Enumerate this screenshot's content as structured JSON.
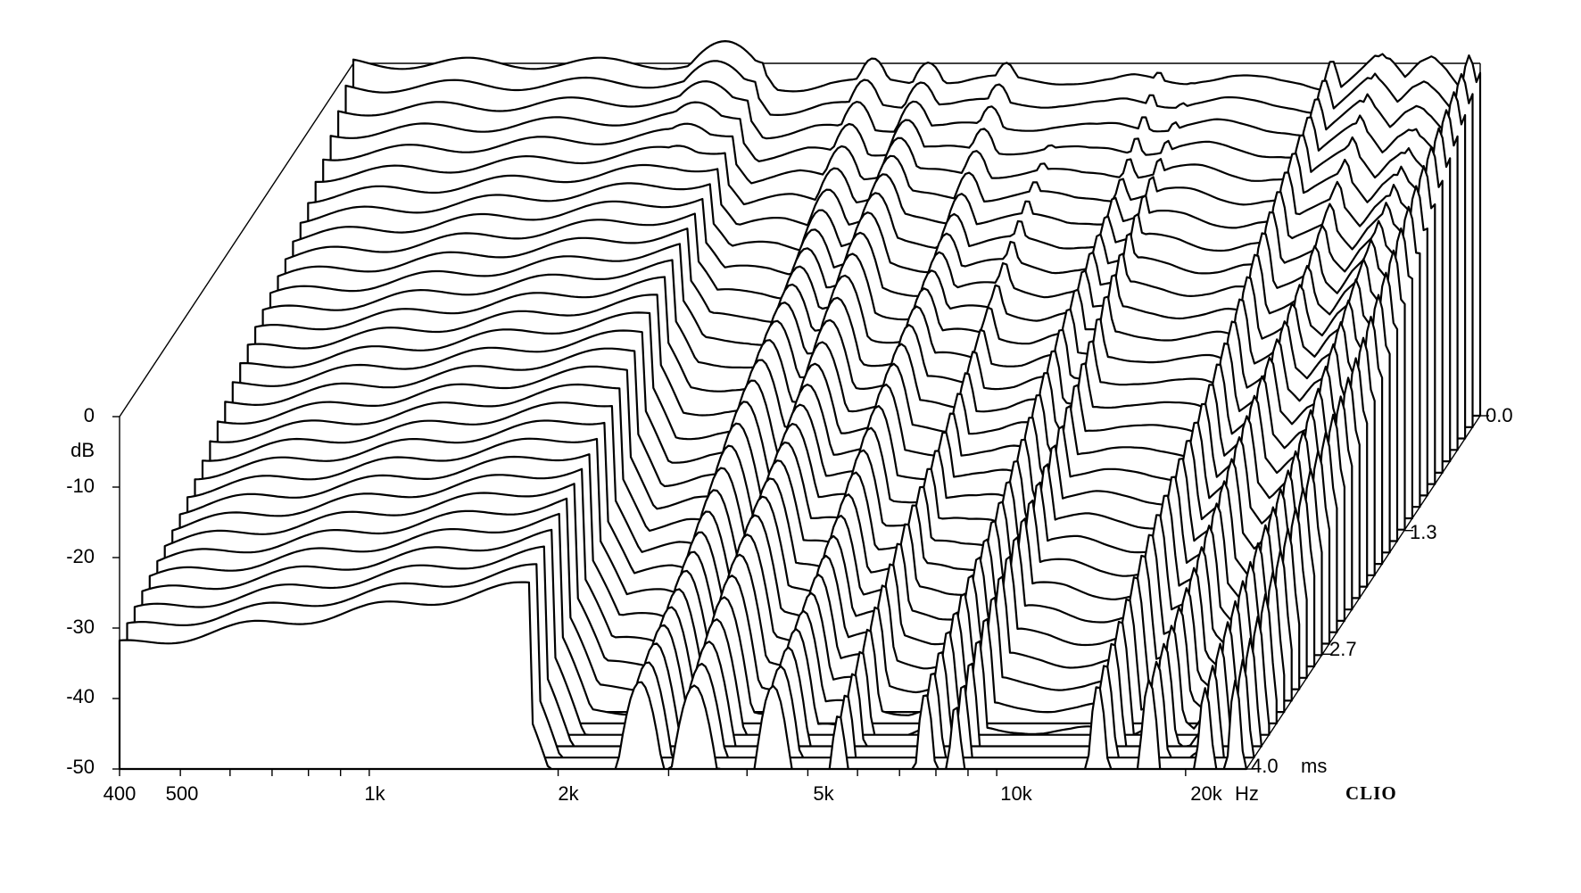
{
  "chart_data": {
    "type": "waterfall",
    "title": "",
    "x_axis": {
      "unit": "Hz",
      "scale": "log",
      "range": [
        400,
        25000
      ],
      "tick_labels": [
        {
          "value": 400,
          "label": "400"
        },
        {
          "value": 500,
          "label": "500"
        },
        {
          "value": 1000,
          "label": "1k"
        },
        {
          "value": 2000,
          "label": "2k"
        },
        {
          "value": 5000,
          "label": "5k"
        },
        {
          "value": 10000,
          "label": "10k"
        },
        {
          "value": 20000,
          "label": "20k"
        }
      ],
      "unit_label": "Hz"
    },
    "y_axis": {
      "label": "dB",
      "range": [
        -50,
        0
      ],
      "tick_labels": [
        {
          "value": 0,
          "label": "0"
        },
        {
          "value": -10,
          "label": "-10"
        },
        {
          "value": -20,
          "label": "-20"
        },
        {
          "value": -30,
          "label": "-30"
        },
        {
          "value": -40,
          "label": "-40"
        },
        {
          "value": -50,
          "label": "-50"
        }
      ]
    },
    "z_axis": {
      "unit": "ms",
      "range": [
        0,
        4.0
      ],
      "tick_labels": [
        {
          "value": 0,
          "label": "0.0"
        },
        {
          "value": 1.3,
          "label": "1.3"
        },
        {
          "value": 2.7,
          "label": "2.7"
        },
        {
          "value": 4.0,
          "label": "4.0"
        }
      ],
      "unit_label": "ms"
    },
    "slices": 32,
    "brand": "CLIO",
    "initial_response": {
      "freq_hz": [
        400,
        500,
        600,
        700,
        800,
        900,
        1000,
        1100,
        1200,
        1300,
        1500,
        1700,
        1900,
        2100,
        2300,
        2500,
        2800,
        3100,
        3400,
        3700,
        4000,
        4500,
        5000,
        5500,
        6000,
        6500,
        7000,
        7500,
        8000,
        8500,
        9000,
        10000,
        11000,
        12000,
        13000,
        14000,
        15000,
        16000,
        17000,
        18000,
        19000,
        20000,
        21000,
        22000,
        23000,
        24000,
        25000
      ],
      "db": [
        -1,
        -1,
        -1.2,
        -1.3,
        -1.3,
        -1.5,
        -1.6,
        -1.8,
        -1.6,
        -1.2,
        -1.4,
        -1.8,
        -1.3,
        -1.1,
        -0.8,
        -1.0,
        -0.6,
        -0.3,
        0.0,
        -0.6,
        -0.6,
        -0.4,
        -0.2,
        -0.2,
        -0.6,
        -0.8,
        -0.3,
        -0.3,
        -0.3,
        -0.2,
        0.1,
        0.0,
        -0.6,
        -0.8,
        -0.6,
        -1.0,
        -0.8,
        0.8,
        2.5,
        1.8,
        -0.6,
        2.0,
        3.4,
        2.0,
        -0.2,
        -2.5,
        1.0
      ]
    }
  }
}
